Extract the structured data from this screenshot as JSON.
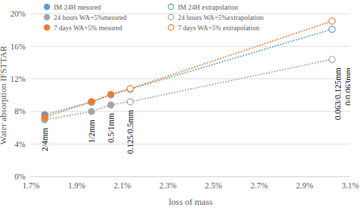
{
  "chart_data": {
    "type": "scatter",
    "xlabel": "loss of mass",
    "ylabel": "Water absorption IFSTTAR",
    "xlim": [
      1.7,
      3.1
    ],
    "xticks": [
      {
        "value": 1.7,
        "label": "1.7%"
      },
      {
        "value": 1.9,
        "label": "1.9%"
      },
      {
        "value": 2.1,
        "label": "2.1%"
      },
      {
        "value": 2.3,
        "label": "2.3%"
      },
      {
        "value": 2.5,
        "label": "2.5%"
      },
      {
        "value": 2.7,
        "label": "2.7%"
      },
      {
        "value": 2.9,
        "label": "2.9%"
      },
      {
        "value": 3.1,
        "label": "3.1%"
      }
    ],
    "ylim": [
      0,
      20
    ],
    "yticks": [
      {
        "value": 0,
        "label": "0%"
      },
      {
        "value": 4,
        "label": "4%"
      },
      {
        "value": 8,
        "label": "8%"
      },
      {
        "value": 12,
        "label": "12%"
      },
      {
        "value": 16,
        "label": "16%"
      },
      {
        "value": 20,
        "label": "20%"
      }
    ],
    "grid": true,
    "legend": "top",
    "series": [
      {
        "name": "IM 24H mesured",
        "color": "#5b9bd5",
        "marker": "circle",
        "x": [
          1.76,
          1.965,
          2.05
        ],
        "values": [
          7.6,
          9.15,
          10.05
        ]
      },
      {
        "name": "IM 24H extrapolation",
        "color": "#5b9bd5",
        "marker": "open_circle",
        "line_style": "dotted",
        "x": [
          2.135,
          3.02
        ],
        "values": [
          10.75,
          18.1
        ]
      },
      {
        "name": "24 hours WA+5%mesured",
        "color": "#a5a5a5",
        "marker": "circle",
        "x": [
          1.76,
          1.965,
          2.05
        ],
        "values": [
          7.0,
          8.0,
          8.8
        ]
      },
      {
        "name": "24 hours WA+5%extrapolation",
        "color": "#a5a5a5",
        "marker": "open_circle",
        "line_style": "dotted",
        "x": [
          2.135,
          3.02
        ],
        "values": [
          9.2,
          14.4
        ]
      },
      {
        "name": "7 days WA+5% mesured",
        "color": "#ed7d31",
        "marker": "circle",
        "x": [
          1.76,
          1.965,
          2.05
        ],
        "values": [
          7.3,
          9.2,
          10.1
        ]
      },
      {
        "name": "7 days WA+5% extrapolation",
        "color": "#ed7d31",
        "marker": "open_circle",
        "line_style": "dotted",
        "x": [
          2.135,
          3.02
        ],
        "values": [
          10.8,
          19.1
        ]
      }
    ],
    "annotations": [
      {
        "text": "2/4mm",
        "x": 1.76
      },
      {
        "text": "1/2mm",
        "x": 1.965
      },
      {
        "text": "0.5/1mm",
        "x": 2.05
      },
      {
        "text": "0.125/0.5mm",
        "x": 2.135
      },
      {
        "text": "0.063/0.125mm",
        "x": 3.02
      },
      {
        "text": "0/0.063mm",
        "x": 3.02
      }
    ]
  }
}
